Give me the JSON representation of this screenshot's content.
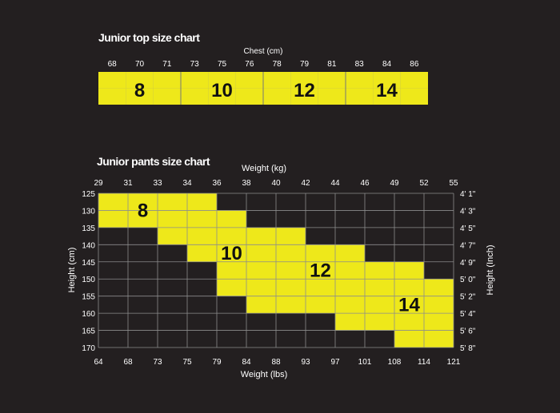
{
  "colors": {
    "background": "#231f20",
    "yellow": "#eee81a",
    "grid": "#8c8c8c"
  },
  "top_chart": {
    "title": "Junior top size chart",
    "axis_label": "Chest (cm)",
    "chest_values": [
      "68",
      "70",
      "71",
      "73",
      "75",
      "76",
      "78",
      "79",
      "81",
      "83",
      "84",
      "86"
    ],
    "sizes": [
      {
        "label": "8",
        "cells": [
          0,
          2
        ]
      },
      {
        "label": "10",
        "cells": [
          3,
          5
        ]
      },
      {
        "label": "12",
        "cells": [
          6,
          8
        ]
      },
      {
        "label": "14",
        "cells": [
          9,
          11
        ]
      }
    ]
  },
  "pants_chart": {
    "title": "Junior pants size chart",
    "top_axis_label": "Weight (kg)",
    "bottom_axis_label": "Weight (lbs)",
    "left_axis_label": "Height (cm)",
    "right_axis_label": "Height (Inch)",
    "weight_kg": [
      "29",
      "31",
      "33",
      "34",
      "36",
      "38",
      "40",
      "42",
      "44",
      "46",
      "49",
      "52",
      "55"
    ],
    "weight_lbs": [
      "64",
      "68",
      "73",
      "75",
      "79",
      "84",
      "88",
      "93",
      "97",
      "101",
      "108",
      "114",
      "121"
    ],
    "height_cm": [
      "125",
      "130",
      "135",
      "140",
      "145",
      "150",
      "155",
      "160",
      "165",
      "170"
    ],
    "height_inch": [
      "4' 1\"",
      "4' 3\"",
      "4' 5\"",
      "4' 7\"",
      "4' 9\"",
      "5' 0\"",
      "5' 2\"",
      "5' 4\"",
      "5' 6\"",
      "5' 8\""
    ],
    "yellow_rows": [
      [
        0,
        3
      ],
      [
        0,
        4
      ],
      [
        2,
        6
      ],
      [
        3,
        8
      ],
      [
        4,
        10
      ],
      [
        4,
        11
      ],
      [
        5,
        11
      ],
      [
        8,
        11
      ],
      [
        10,
        11
      ]
    ],
    "size_labels": [
      {
        "label": "8",
        "col": 1.5,
        "row": 1
      },
      {
        "label": "10",
        "col": 4.5,
        "row": 3.5
      },
      {
        "label": "12",
        "col": 7.5,
        "row": 4.5
      },
      {
        "label": "14",
        "col": 10.5,
        "row": 6.5
      }
    ]
  }
}
